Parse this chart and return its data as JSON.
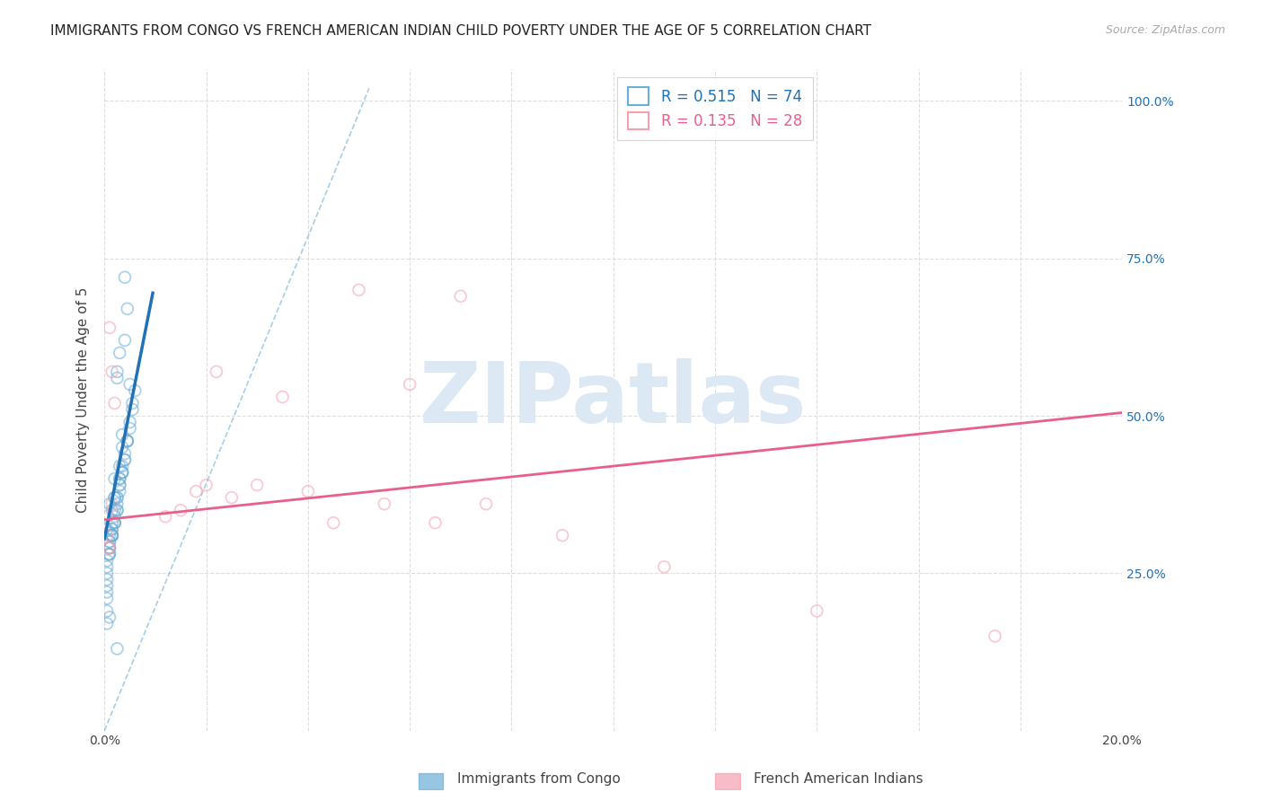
{
  "title": "IMMIGRANTS FROM CONGO VS FRENCH AMERICAN INDIAN CHILD POVERTY UNDER THE AGE OF 5 CORRELATION CHART",
  "source": "Source: ZipAtlas.com",
  "ylabel": "Child Poverty Under the Age of 5",
  "legend_label_blue": "Immigrants from Congo",
  "legend_label_pink": "French American Indians",
  "background_color": "#ffffff",
  "grid_color": "#dddddd",
  "watermark_text": "ZIPatlas",
  "watermark_color": "#dde8f5",
  "blue_scatter_x": [
    0.0005,
    0.001,
    0.0008,
    0.0015,
    0.001,
    0.0005,
    0.002,
    0.0015,
    0.001,
    0.0005,
    0.0025,
    0.002,
    0.0015,
    0.001,
    0.0005,
    0.003,
    0.0025,
    0.002,
    0.0015,
    0.001,
    0.0005,
    0.0035,
    0.003,
    0.0025,
    0.002,
    0.0015,
    0.001,
    0.0005,
    0.004,
    0.0035,
    0.003,
    0.0025,
    0.002,
    0.0015,
    0.001,
    0.0005,
    0.0045,
    0.004,
    0.0035,
    0.003,
    0.0025,
    0.002,
    0.0015,
    0.001,
    0.0005,
    0.005,
    0.0045,
    0.004,
    0.0035,
    0.003,
    0.0025,
    0.002,
    0.0015,
    0.001,
    0.0005,
    0.0055,
    0.005,
    0.0045,
    0.004,
    0.0035,
    0.003,
    0.0025,
    0.002,
    0.0015,
    0.001,
    0.0005,
    0.006,
    0.0055,
    0.005,
    0.0045,
    0.004,
    0.0035,
    0.003,
    0.0025
  ],
  "blue_scatter_y": [
    0.32,
    0.36,
    0.28,
    0.31,
    0.28,
    0.26,
    0.34,
    0.32,
    0.3,
    0.27,
    0.35,
    0.37,
    0.31,
    0.29,
    0.25,
    0.4,
    0.36,
    0.33,
    0.31,
    0.28,
    0.24,
    0.42,
    0.4,
    0.37,
    0.35,
    0.32,
    0.3,
    0.23,
    0.44,
    0.41,
    0.39,
    0.37,
    0.33,
    0.31,
    0.29,
    0.22,
    0.46,
    0.43,
    0.41,
    0.39,
    0.35,
    0.33,
    0.31,
    0.29,
    0.21,
    0.55,
    0.46,
    0.43,
    0.47,
    0.38,
    0.57,
    0.4,
    0.33,
    0.31,
    0.19,
    0.52,
    0.49,
    0.46,
    0.62,
    0.41,
    0.6,
    0.56,
    0.37,
    0.35,
    0.18,
    0.17,
    0.54,
    0.51,
    0.48,
    0.67,
    0.72,
    0.45,
    0.42,
    0.13
  ],
  "pink_scatter_x": [
    0.0005,
    0.001,
    0.0008,
    0.0015,
    0.001,
    0.0005,
    0.002,
    0.0015,
    0.018,
    0.02,
    0.022,
    0.025,
    0.015,
    0.012,
    0.03,
    0.035,
    0.04,
    0.045,
    0.05,
    0.055,
    0.06,
    0.065,
    0.07,
    0.075,
    0.09,
    0.11,
    0.14,
    0.175
  ],
  "pink_scatter_y": [
    0.31,
    0.64,
    0.29,
    0.36,
    0.29,
    0.34,
    0.52,
    0.57,
    0.38,
    0.39,
    0.57,
    0.37,
    0.35,
    0.34,
    0.39,
    0.53,
    0.38,
    0.33,
    0.7,
    0.36,
    0.55,
    0.33,
    0.69,
    0.36,
    0.31,
    0.26,
    0.19,
    0.15
  ],
  "blue_trend_x": [
    0.0,
    0.0095
  ],
  "blue_trend_y": [
    0.305,
    0.695
  ],
  "pink_trend_x": [
    0.0,
    0.2
  ],
  "pink_trend_y": [
    0.335,
    0.505
  ],
  "ref_line_x": [
    0.0,
    0.052
  ],
  "ref_line_y": [
    0.0,
    1.02
  ],
  "xlim": [
    0.0,
    0.2
  ],
  "ylim": [
    0.0,
    1.05
  ],
  "title_fontsize": 11,
  "axis_label_fontsize": 11,
  "tick_fontsize": 10,
  "scatter_size": 85,
  "scatter_alpha": 0.55,
  "blue_color": "#6baed6",
  "pink_color": "#f4a0b0",
  "blue_trend_color": "#2171b5",
  "pink_trend_color": "#e8608a"
}
